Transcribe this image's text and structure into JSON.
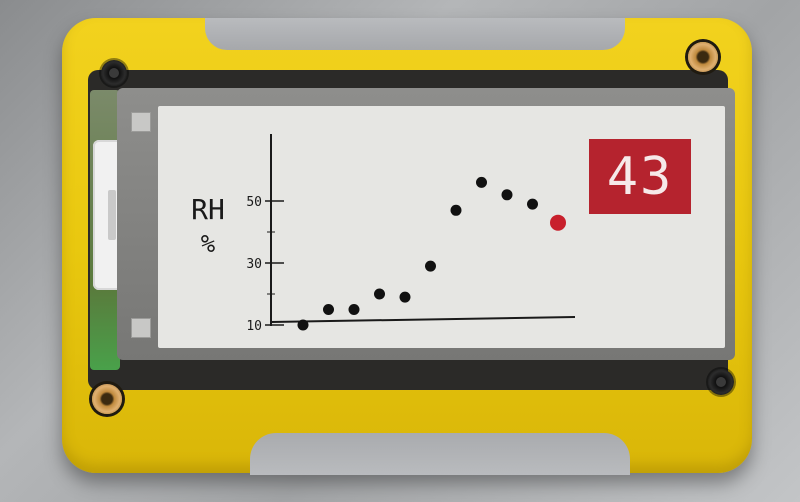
{
  "device": {
    "enclosure_color": "#ecc812",
    "screen_color": "#e6e6e3",
    "accent_color": "#b5232e"
  },
  "display": {
    "unit_label": "RH",
    "unit_symbol": "%",
    "current_value": "43"
  },
  "chart_data": {
    "type": "scatter",
    "ylabel": "RH %",
    "y_ticks": [
      "10",
      "30",
      "50"
    ],
    "ylim": [
      5,
      55
    ],
    "x": [
      1,
      2,
      3,
      4,
      5,
      6,
      7,
      8,
      9,
      10,
      11
    ],
    "y": [
      10,
      15,
      15,
      20,
      19,
      29,
      47,
      56,
      52,
      49,
      43
    ],
    "highlight_index": 10,
    "point_color": "#111111",
    "highlight_color": "#c8202c",
    "grid": false
  }
}
